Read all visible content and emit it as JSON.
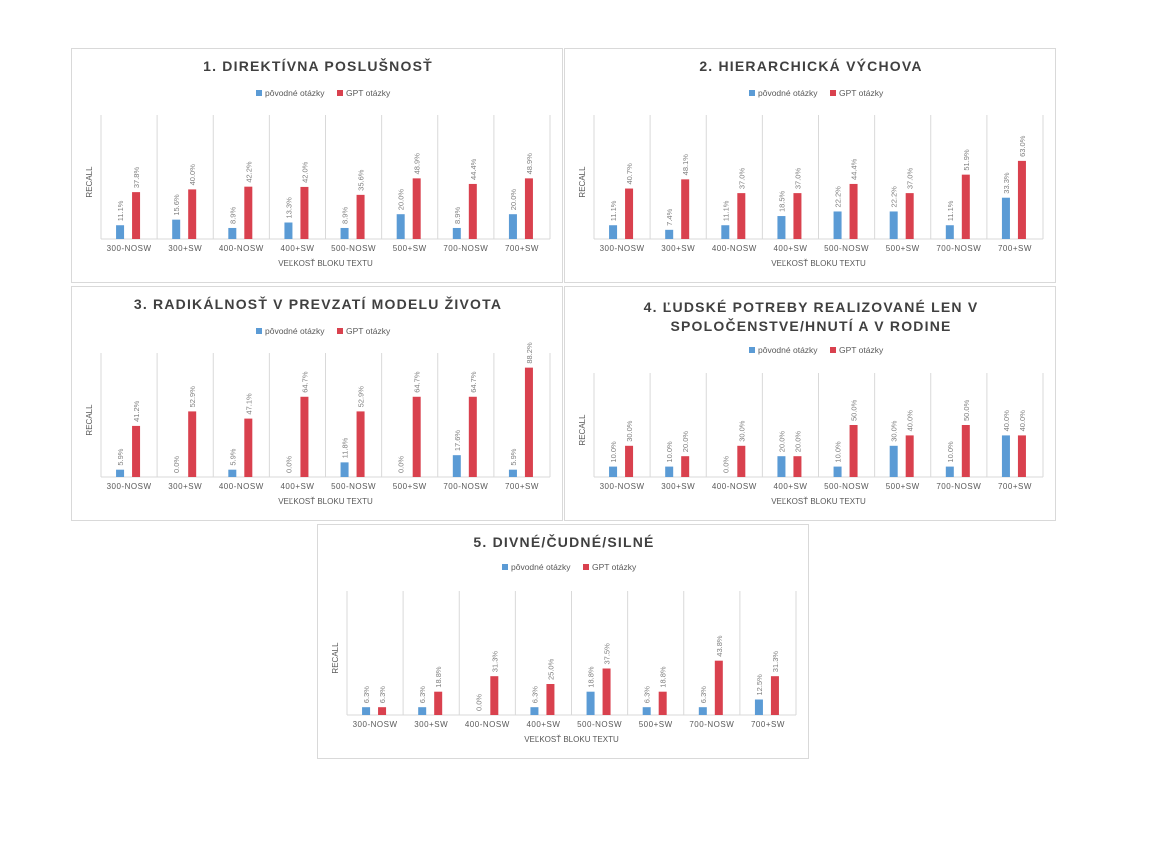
{
  "legend": {
    "series_a": "pôvodné otázky",
    "series_b": "GPT otázky"
  },
  "colors": {
    "series_a": "#5b9bd5",
    "series_b": "#d9414e",
    "grid": "#d9d9d9",
    "text": "#595959",
    "title": "#404040"
  },
  "chart_data": [
    {
      "type": "bar",
      "title": "1. DIREKTÍVNA POSLUŠNOSŤ",
      "xlabel": "VEĽKOSŤ BLOKU TEXTU",
      "ylabel": "RECALL",
      "ylim": [
        0,
        100
      ],
      "legend_position": "top",
      "categories": [
        "300-NOSW",
        "300+SW",
        "400-NOSW",
        "400+SW",
        "500-NOSW",
        "500+SW",
        "700-NOSW",
        "700+SW"
      ],
      "series": [
        {
          "name": "pôvodné otázky",
          "values": [
            11.1,
            15.6,
            8.9,
            13.3,
            8.9,
            20.0,
            8.9,
            20.0
          ],
          "labels": [
            "11.1%",
            "15.6%",
            "8.9%",
            "13.3%",
            "8.9%",
            "20.0%",
            "8.9%",
            "20.0%"
          ]
        },
        {
          "name": "GPT otázky",
          "values": [
            37.8,
            40.0,
            42.2,
            42.0,
            35.6,
            48.9,
            44.4,
            48.9
          ],
          "labels": [
            "37.8%",
            "40.0%",
            "42.2%",
            "42.0%",
            "35.6%",
            "48.9%",
            "44.4%",
            "48.9%"
          ]
        }
      ]
    },
    {
      "type": "bar",
      "title": "2. HIERARCHICKÁ VÝCHOVA",
      "xlabel": "VEĽKOSŤ BLOKU TEXTU",
      "ylabel": "RECALL",
      "ylim": [
        0,
        100
      ],
      "legend_position": "top",
      "categories": [
        "300-NOSW",
        "300+SW",
        "400-NOSW",
        "400+SW",
        "500-NOSW",
        "500+SW",
        "700-NOSW",
        "700+SW"
      ],
      "series": [
        {
          "name": "pôvodné otázky",
          "values": [
            11.1,
            7.4,
            11.1,
            18.5,
            22.2,
            22.2,
            11.1,
            33.3
          ],
          "labels": [
            "11.1%",
            "7.4%",
            "11.1%",
            "18.5%",
            "22.2%",
            "22.2%",
            "11.1%",
            "33.3%"
          ]
        },
        {
          "name": "GPT otázky",
          "values": [
            40.7,
            48.1,
            37.0,
            37.0,
            44.4,
            37.0,
            51.9,
            63.0
          ],
          "labels": [
            "40.7%",
            "48.1%",
            "37.0%",
            "37.0%",
            "44.4%",
            "37.0%",
            "51.9%",
            "63.0%"
          ]
        }
      ]
    },
    {
      "type": "bar",
      "title": "3. RADIKÁLNOSŤ V PREVZATÍ MODELU ŽIVOTA",
      "xlabel": "VEĽKOSŤ BLOKU TEXTU",
      "ylabel": "RECALL",
      "ylim": [
        0,
        100
      ],
      "legend_position": "top",
      "categories": [
        "300-NOSW",
        "300+SW",
        "400-NOSW",
        "400+SW",
        "500-NOSW",
        "500+SW",
        "700-NOSW",
        "700+SW"
      ],
      "series": [
        {
          "name": "pôvodné otázky",
          "values": [
            5.9,
            0.0,
            5.9,
            0.0,
            11.8,
            0.0,
            17.6,
            5.9
          ],
          "labels": [
            "5.9%",
            "0.0%",
            "5.9%",
            "0.0%",
            "11.8%",
            "0.0%",
            "17.6%",
            "5.9%"
          ]
        },
        {
          "name": "GPT otázky",
          "values": [
            41.2,
            52.9,
            47.1,
            64.7,
            52.9,
            64.7,
            64.7,
            88.2
          ],
          "labels": [
            "41.2%",
            "52.9%",
            "47.1%",
            "64.7%",
            "52.9%",
            "64.7%",
            "64.7%",
            "88.2%"
          ]
        }
      ]
    },
    {
      "type": "bar",
      "title": "4. ĽUDSKÉ POTREBY REALIZOVANÉ LEN V SPOLOČENSTVE/HNUTÍ A V RODINE",
      "title_lines": [
        "4. ĽUDSKÉ POTREBY REALIZOVANÉ LEN V",
        "SPOLOČENSTVE/HNUTÍ A V RODINE"
      ],
      "xlabel": "VEĽKOSŤ BLOKU TEXTU",
      "ylabel": "RECALL",
      "ylim": [
        0,
        100
      ],
      "legend_position": "top",
      "categories": [
        "300-NOSW",
        "300+SW",
        "400-NOSW",
        "400+SW",
        "500-NOSW",
        "500+SW",
        "700-NOSW",
        "700+SW"
      ],
      "series": [
        {
          "name": "pôvodné otázky",
          "values": [
            10.0,
            10.0,
            0.0,
            20.0,
            10.0,
            30.0,
            10.0,
            40.0
          ],
          "labels": [
            "10.0%",
            "10.0%",
            "0.0%",
            "20.0%",
            "10.0%",
            "30.0%",
            "10.0%",
            "40.0%"
          ]
        },
        {
          "name": "GPT otázky",
          "values": [
            30.0,
            20.0,
            30.0,
            20.0,
            50.0,
            40.0,
            50.0,
            40.0
          ],
          "labels": [
            "30.0%",
            "20.0%",
            "30.0%",
            "20.0%",
            "50.0%",
            "40.0%",
            "50.0%",
            "40.0%"
          ]
        }
      ]
    },
    {
      "type": "bar",
      "title": "5. DIVNÉ/ČUDNÉ/SILNÉ",
      "xlabel": "VEĽKOSŤ BLOKU TEXTU",
      "ylabel": "RECALL",
      "ylim": [
        0,
        100
      ],
      "legend_position": "top",
      "categories": [
        "300-NOSW",
        "300+SW",
        "400-NOSW",
        "400+SW",
        "500-NOSW",
        "500+SW",
        "700-NOSW",
        "700+SW"
      ],
      "series": [
        {
          "name": "pôvodné otázky",
          "values": [
            6.3,
            6.3,
            0.0,
            6.3,
            18.8,
            6.3,
            6.3,
            12.5
          ],
          "labels": [
            "6.3%",
            "6.3%",
            "0.0%",
            "6.3%",
            "18.8%",
            "6.3%",
            "6.3%",
            "12.5%"
          ]
        },
        {
          "name": "GPT otázky",
          "values": [
            6.3,
            18.8,
            31.3,
            25.0,
            37.5,
            18.8,
            43.8,
            31.3
          ],
          "labels": [
            "6.3%",
            "18.8%",
            "31.3%",
            "25.0%",
            "37.5%",
            "18.8%",
            "43.8%",
            "31.3%"
          ]
        }
      ]
    }
  ]
}
